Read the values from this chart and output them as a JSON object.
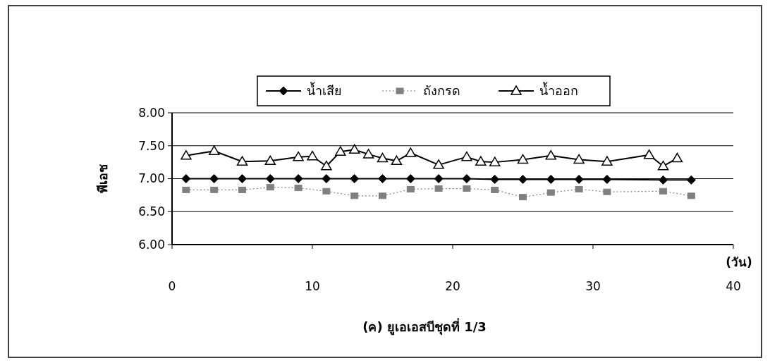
{
  "chart_data": {
    "type": "line",
    "title": "(ค) ยูเอเอสบีชุดที่ 1/3",
    "xlabel": "(วัน)",
    "ylabel": "พีเอช",
    "xlim": [
      0,
      40
    ],
    "xticks": [
      0,
      10,
      20,
      30,
      40
    ],
    "ylim": [
      6,
      8
    ],
    "yticks": [
      {
        "value": 6,
        "label": "6.00"
      },
      {
        "value": 6.5,
        "label": "6.50"
      },
      {
        "value": 7,
        "label": "7.00"
      },
      {
        "value": 7.5,
        "label": "7.50"
      },
      {
        "value": 8,
        "label": "8.00"
      }
    ],
    "grid": "y",
    "legend": "top",
    "series": [
      {
        "name": "น้ำเสีย",
        "color": "#000000",
        "marker": "diamond",
        "line_style": "solid",
        "x": [
          1,
          3,
          5,
          7,
          9,
          11,
          13,
          15,
          17,
          19,
          21,
          23,
          25,
          27,
          29,
          31,
          35,
          37
        ],
        "values": [
          7.0,
          7.0,
          7.0,
          7.0,
          7.0,
          7.0,
          7.0,
          7.0,
          7.0,
          7.0,
          7.0,
          6.99,
          6.99,
          6.99,
          6.99,
          6.99,
          6.98,
          6.98
        ]
      },
      {
        "name": "ถังกรด",
        "color": "#808080",
        "marker": "square",
        "line_style": "dotted",
        "x": [
          1,
          3,
          5,
          7,
          9,
          11,
          13,
          15,
          17,
          19,
          21,
          23,
          25,
          27,
          29,
          31,
          35,
          37
        ],
        "values": [
          6.83,
          6.83,
          6.83,
          6.87,
          6.86,
          6.81,
          6.74,
          6.74,
          6.84,
          6.85,
          6.85,
          6.83,
          6.72,
          6.79,
          6.84,
          6.8,
          6.81,
          6.74
        ]
      },
      {
        "name": "น้ำออก",
        "color": "#000000",
        "marker": "triangle",
        "line_style": "solid",
        "x": [
          1,
          3,
          5,
          7,
          9,
          10,
          11,
          12,
          13,
          14,
          15,
          16,
          17,
          19,
          21,
          22,
          23,
          25,
          27,
          29,
          31,
          34,
          35,
          36
        ],
        "values": [
          7.35,
          7.42,
          7.26,
          7.27,
          7.33,
          7.34,
          7.19,
          7.41,
          7.44,
          7.37,
          7.31,
          7.27,
          7.39,
          7.21,
          7.33,
          7.26,
          7.25,
          7.29,
          7.35,
          7.29,
          7.26,
          7.36,
          7.19,
          7.31
        ]
      }
    ]
  }
}
